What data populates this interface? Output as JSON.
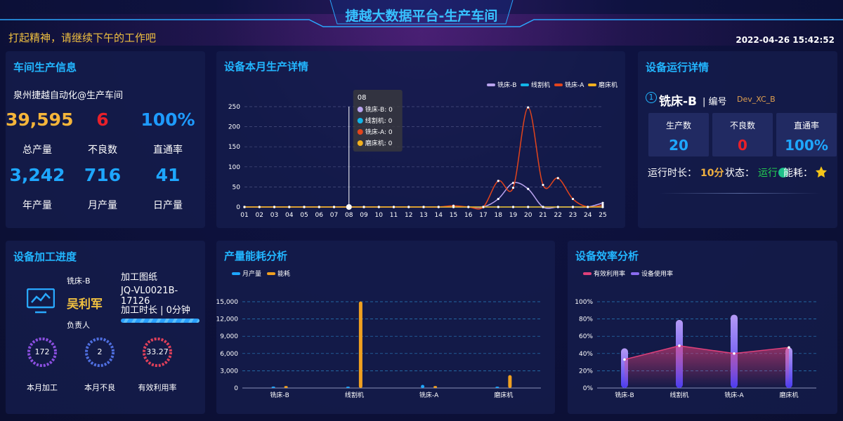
{
  "header": {
    "title": "捷越大数据平台-生产车间",
    "greeting": "打起精神，请继续下午的工作吧",
    "datetime": "2022-04-26 15:42:52"
  },
  "workshop": {
    "title": "车间生产信息",
    "location": "泉州捷越自动化@生产车间",
    "stats": [
      {
        "value": "39,595",
        "label": "总产量"
      },
      {
        "value": "6",
        "label": "不良数"
      },
      {
        "value": "100%",
        "label": "直通率"
      },
      {
        "value": "3,242",
        "label": "年产量"
      },
      {
        "value": "716",
        "label": "月产量"
      },
      {
        "value": "41",
        "label": "日产量"
      }
    ]
  },
  "device_status": {
    "title": "设备运行详情",
    "index": "1",
    "name": "铣床-B",
    "code_label": "编号",
    "code": "Dev_XC_B",
    "stats": [
      {
        "label": "生产数",
        "value": "20"
      },
      {
        "label": "不良数",
        "value": "0"
      },
      {
        "label": "直通率",
        "value": "100%"
      }
    ],
    "runtime_label": "运行时长：",
    "runtime": "10分",
    "state_label": "状态：",
    "state": "运行",
    "energy_label": "能耗："
  },
  "progress": {
    "title": "设备加工进度",
    "device": "铣床-B",
    "person": "吴利军",
    "role": "负责人",
    "drawing_label": "加工图纸",
    "drawing": "JQ-VL0021B-17126",
    "duration": "加工时长 | 0分钟",
    "gauges": [
      {
        "value": "172",
        "label": "本月加工"
      },
      {
        "value": "2",
        "label": "本月不良"
      },
      {
        "value": "33.27",
        "label": "有效利用率"
      }
    ]
  },
  "chart_data": [
    {
      "type": "line",
      "title": "设备本月生产详情",
      "categories": [
        "01",
        "02",
        "03",
        "04",
        "05",
        "06",
        "07",
        "08",
        "09",
        "10",
        "11",
        "12",
        "13",
        "14",
        "15",
        "16",
        "17",
        "18",
        "19",
        "20",
        "21",
        "22",
        "23",
        "24",
        "25"
      ],
      "series": [
        {
          "name": "铣床-B",
          "color": "#b9a3ef",
          "values": [
            0,
            0,
            0,
            0,
            0,
            0,
            0,
            0,
            0,
            0,
            0,
            0,
            0,
            0,
            0,
            0,
            0,
            20,
            60,
            45,
            0,
            0,
            0,
            0,
            10
          ]
        },
        {
          "name": "线割机",
          "color": "#12b5e8",
          "values": [
            0,
            0,
            0,
            0,
            0,
            0,
            0,
            0,
            0,
            0,
            0,
            0,
            0,
            0,
            0,
            0,
            0,
            0,
            0,
            0,
            0,
            0,
            0,
            0,
            0
          ]
        },
        {
          "name": "铣床-A",
          "color": "#e2441c",
          "values": [
            0,
            0,
            0,
            0,
            0,
            0,
            0,
            0,
            0,
            0,
            0,
            0,
            0,
            0,
            3,
            0,
            0,
            65,
            48,
            248,
            55,
            72,
            20,
            0,
            5
          ]
        },
        {
          "name": "磨床机",
          "color": "#f2b01e",
          "values": [
            0,
            0,
            0,
            0,
            0,
            0,
            0,
            0,
            0,
            0,
            0,
            0,
            0,
            0,
            0,
            0,
            0,
            0,
            0,
            0,
            0,
            0,
            0,
            0,
            0
          ]
        }
      ],
      "ylim": [
        0,
        250
      ],
      "yticks": [
        0,
        50,
        100,
        150,
        200,
        250
      ],
      "grid": true,
      "legend": "top-right"
    },
    {
      "type": "bar",
      "title": "产量能耗分析",
      "categories": [
        "铣床-B",
        "线割机",
        "铣床-A",
        "磨床机"
      ],
      "series": [
        {
          "name": "月产量",
          "color": "#1ea7ff",
          "values": [
            20,
            0,
            300,
            0
          ]
        },
        {
          "name": "能耗",
          "color": "#f0a020",
          "values": [
            100,
            14800,
            100,
            2000
          ]
        }
      ],
      "ylim": [
        0,
        15000
      ],
      "yticks": [
        0,
        {
          "value": 3000,
          "label": "3,000"
        },
        {
          "value": 6000,
          "label": "6,000"
        },
        {
          "value": 9000,
          "label": "9,000"
        },
        {
          "value": 12000,
          "label": "12,000"
        },
        {
          "value": 15000,
          "label": "15,000"
        }
      ],
      "grid": true,
      "legend": "top-left"
    },
    {
      "type": "combo",
      "title": "设备效率分析",
      "categories": [
        "铣床-B",
        "线割机",
        "铣床-A",
        "磨床机"
      ],
      "series": [
        {
          "name": "有效利用率",
          "type": "line",
          "color": "#e0407a",
          "values": [
            33,
            49,
            40,
            47
          ]
        },
        {
          "name": "设备使用率",
          "type": "bar",
          "color": "#8b6cf0",
          "values": [
            46,
            79,
            85,
            47
          ]
        }
      ],
      "ylim": [
        0,
        100
      ],
      "yticks": [
        {
          "value": 0,
          "label": "0%"
        },
        {
          "value": 20,
          "label": "20%"
        },
        {
          "value": 40,
          "label": "40%"
        },
        {
          "value": 60,
          "label": "60%"
        },
        {
          "value": 80,
          "label": "80%"
        },
        {
          "value": 100,
          "label": "100%"
        }
      ],
      "grid": true,
      "legend": "top-left"
    }
  ]
}
